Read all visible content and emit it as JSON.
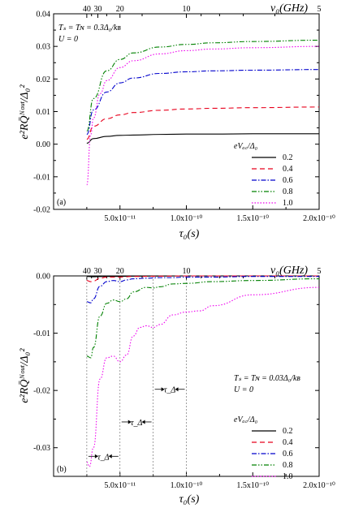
{
  "chart_data": [
    {
      "type": "line",
      "panel_label": "(a)",
      "ylabel": "e²RQ̄ᴺᵒᵘᵗ/Δ₀²",
      "xlabel": "τ₀(s)",
      "top_axis_label": "ν₀(GHz)",
      "top_ticks": [
        "40",
        "30",
        "20",
        "10",
        "5"
      ],
      "top_tick_freqs": [
        40,
        30,
        20,
        10,
        5
      ],
      "params": [
        "Tₛ = Tɴ = 0.3Δ₀/kʙ",
        "U = 0"
      ],
      "xlim": [
        0,
        2e-10
      ],
      "ylim": [
        -0.02,
        0.04
      ],
      "xticks": [
        5e-11,
        1e-10,
        1.5e-10,
        2e-10
      ],
      "xtick_labels": [
        "5.0x10⁻¹¹",
        "1.0x10⁻¹⁰",
        "1.5x10⁻¹⁰",
        "2.0x10⁻¹⁰"
      ],
      "yticks": [
        -0.02,
        -0.01,
        0.0,
        0.01,
        0.02,
        0.03,
        0.04
      ],
      "ytick_labels": [
        "-0.02",
        "-0.01",
        "0.00",
        "0.01",
        "0.02",
        "0.03",
        "0.04"
      ],
      "legend_title": "eVₐ꜀/Δ₀",
      "legend_position": "right",
      "series": [
        {
          "name": "0.2",
          "color": "#000000",
          "dash": "",
          "x": [
            2.5e-11,
            3e-11,
            4e-11,
            5e-11,
            6e-11,
            8e-11,
            1e-10,
            1.2e-10,
            1.5e-10,
            2e-10
          ],
          "y": [
            0.0003,
            0.0017,
            0.0024,
            0.0027,
            0.0028,
            0.003,
            0.0031,
            0.0031,
            0.0032,
            0.0032
          ]
        },
        {
          "name": "0.4",
          "color": "#e8001c",
          "dash": "6,4",
          "x": [
            2.5e-11,
            3e-11,
            4e-11,
            5e-11,
            6e-11,
            8e-11,
            1e-10,
            1.2e-10,
            1.5e-10,
            2e-10
          ],
          "y": [
            0.0015,
            0.0055,
            0.0078,
            0.009,
            0.0097,
            0.0104,
            0.0108,
            0.011,
            0.0112,
            0.0114
          ]
        },
        {
          "name": "0.6",
          "color": "#0000cc",
          "dash": "6,2,1.5,2",
          "x": [
            2.5e-11,
            3e-11,
            4e-11,
            5e-11,
            6e-11,
            8e-11,
            1e-10,
            1.2e-10,
            1.5e-10,
            2e-10
          ],
          "y": [
            0.003,
            0.0105,
            0.016,
            0.0188,
            0.0203,
            0.0217,
            0.0222,
            0.0225,
            0.0227,
            0.0229
          ]
        },
        {
          "name": "0.8",
          "color": "#008000",
          "dash": "6,2,1.5,2,1.5,2",
          "x": [
            2.5e-11,
            3e-11,
            4e-11,
            5e-11,
            6e-11,
            8e-11,
            1e-10,
            1.2e-10,
            1.5e-10,
            2e-10
          ],
          "y": [
            0.004,
            0.014,
            0.0225,
            0.026,
            0.028,
            0.0298,
            0.0306,
            0.0311,
            0.0315,
            0.0319
          ]
        },
        {
          "name": "1.0",
          "color": "#ee00ee",
          "dash": "1.5,2",
          "x": [
            2.5e-11,
            2.8e-11,
            3e-11,
            3.5e-11,
            4e-11,
            5e-11,
            6e-11,
            8e-11,
            1e-10,
            1.2e-10,
            1.5e-10,
            2e-10
          ],
          "y": [
            -0.0125,
            0.003,
            0.008,
            0.0155,
            0.0195,
            0.0235,
            0.0256,
            0.0277,
            0.0287,
            0.0292,
            0.0296,
            0.03
          ]
        }
      ]
    },
    {
      "type": "line",
      "panel_label": "(b)",
      "ylabel": "e²RQ̄ᴺᵒᵘᵗ/Δ₀²",
      "xlabel": "τ₀(s)",
      "top_axis_label": "ν₀(GHz)",
      "top_ticks": [
        "40",
        "30",
        "20",
        "10",
        "5"
      ],
      "top_tick_freqs": [
        40,
        30,
        20,
        10,
        5
      ],
      "params": [
        "Tₛ = Tɴ = 0.03Δ₀/kʙ",
        "U = 0"
      ],
      "xlim": [
        0,
        2e-10
      ],
      "ylim": [
        -0.035,
        0.0
      ],
      "xticks": [
        5e-11,
        1e-10,
        1.5e-10,
        2e-10
      ],
      "xtick_labels": [
        "5.0x10⁻¹¹",
        "1.0x10⁻¹⁰",
        "1.5x10⁻¹⁰",
        "2.0x10⁻¹⁰"
      ],
      "yticks": [
        -0.03,
        -0.02,
        -0.01,
        0.0
      ],
      "ytick_labels": [
        "-0.03",
        "-0.02",
        "-0.01",
        "0.00"
      ],
      "tau_annotations": [
        {
          "label": "τ_Δ",
          "x": [
            2.5e-11,
            5e-11
          ],
          "y": -0.0315
        },
        {
          "label": "τ_Δ",
          "x": [
            5e-11,
            7.5e-11
          ],
          "y": -0.0255
        },
        {
          "label": "τ_Δ",
          "x": [
            7.5e-11,
            1e-10
          ],
          "y": -0.0198
        }
      ],
      "vlines": [
        2.5e-11,
        5e-11,
        7.5e-11,
        1e-10
      ],
      "legend_title": "eVₐ꜀/Δ₀",
      "legend_position": "bottom-right",
      "series": [
        {
          "name": "0.2",
          "color": "#000000",
          "dash": "",
          "x": [
            2.5e-11,
            3e-11,
            4e-11,
            6e-11,
            1e-10,
            2e-10
          ],
          "y": [
            -0.0001,
            -0.00015,
            -0.0001,
            -5e-05,
            0.0,
            0.0
          ]
        },
        {
          "name": "0.4",
          "color": "#e8001c",
          "dash": "6,4",
          "x": [
            2.5e-11,
            2.8e-11,
            3e-11,
            3.5e-11,
            4e-11,
            5e-11,
            6e-11,
            8e-11,
            1e-10,
            2e-10
          ],
          "y": [
            -0.0008,
            -0.001,
            -0.0009,
            -0.0004,
            -0.0002,
            -0.0002,
            -0.0001,
            -5e-05,
            0.0,
            0.0
          ]
        },
        {
          "name": "0.6",
          "color": "#0000cc",
          "dash": "6,2,1.5,2",
          "x": [
            2.5e-11,
            2.8e-11,
            3e-11,
            3.5e-11,
            4e-11,
            4.5e-11,
            5e-11,
            5.5e-11,
            6e-11,
            7e-11,
            8e-11,
            9e-11,
            1e-10,
            1.2e-10,
            1.5e-10,
            2e-10
          ],
          "y": [
            -0.0045,
            -0.0047,
            -0.004,
            -0.0018,
            -0.001,
            -0.0008,
            -0.001,
            -0.0007,
            -0.0005,
            -0.0004,
            -0.0003,
            -0.0003,
            -0.0002,
            -0.0002,
            -0.0001,
            -0.0001
          ]
        },
        {
          "name": "0.8",
          "color": "#008000",
          "dash": "6,2,1.5,2,1.5,2",
          "x": [
            2.5e-11,
            2.8e-11,
            3e-11,
            3.5e-11,
            4e-11,
            4.5e-11,
            5e-11,
            5.5e-11,
            6e-11,
            7e-11,
            7.5e-11,
            8e-11,
            9e-11,
            1e-10,
            1.2e-10,
            1.5e-10,
            2e-10
          ],
          "y": [
            -0.014,
            -0.0143,
            -0.0125,
            -0.007,
            -0.0048,
            -0.0042,
            -0.0045,
            -0.004,
            -0.0028,
            -0.002,
            -0.0021,
            -0.0019,
            -0.0014,
            -0.0013,
            -0.001,
            -0.0008,
            -0.0005
          ]
        },
        {
          "name": "1.0",
          "color": "#ee00ee",
          "dash": "1.5,2",
          "x": [
            2.5e-11,
            2.7e-11,
            3e-11,
            3.5e-11,
            4e-11,
            4.5e-11,
            5e-11,
            5.5e-11,
            6e-11,
            6.5e-11,
            7e-11,
            7.5e-11,
            8e-11,
            9e-11,
            1e-10,
            1.1e-10,
            1.2e-10,
            1.5e-10,
            2e-10
          ],
          "y": [
            -0.0325,
            -0.0333,
            -0.03,
            -0.018,
            -0.0143,
            -0.014,
            -0.015,
            -0.0138,
            -0.0105,
            -0.009,
            -0.0087,
            -0.009,
            -0.0085,
            -0.0068,
            -0.0063,
            -0.0061,
            -0.0052,
            -0.0033,
            -0.002
          ]
        }
      ]
    }
  ]
}
